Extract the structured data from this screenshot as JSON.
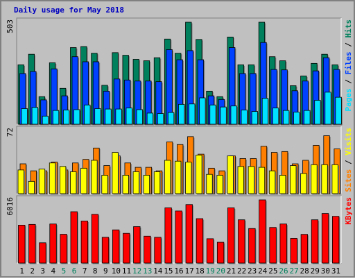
{
  "chart_data": {
    "type": "bar",
    "title": "Daily usage for May 2018",
    "categories": [
      "1",
      "2",
      "3",
      "4",
      "5",
      "6",
      "7",
      "8",
      "9",
      "10",
      "11",
      "12",
      "13",
      "14",
      "15",
      "16",
      "17",
      "18",
      "19",
      "20",
      "21",
      "22",
      "23",
      "24",
      "25",
      "26",
      "27",
      "28",
      "29",
      "30",
      "31"
    ],
    "weekend_days": [
      "5",
      "6",
      "12",
      "13",
      "19",
      "20",
      "26",
      "27"
    ],
    "panels": [
      {
        "id": "pages-files-hits",
        "scale_label": "503",
        "ylim": [
          0,
          503
        ],
        "right_label_parts": [
          {
            "text": "Pages",
            "color": "#00e0ff"
          },
          {
            "text": " / ",
            "color": "#000000"
          },
          {
            "text": "Files",
            "color": "#0040ff"
          },
          {
            "text": " / ",
            "color": "#000000"
          },
          {
            "text": "Hits",
            "color": "#00805c"
          }
        ],
        "series": [
          {
            "name": "Hits",
            "color": "#00805c",
            "values": [
              293,
              345,
              136,
              303,
              177,
              378,
              383,
              350,
              192,
              353,
              340,
              320,
              313,
              328,
              420,
              350,
              503,
              418,
              163,
              136,
              430,
              293,
              293,
              503,
              333,
              313,
              190,
              238,
              300,
              345,
              293
            ]
          },
          {
            "name": "Files",
            "color": "#0040ff",
            "values": [
              250,
              260,
              120,
              273,
              140,
              333,
              308,
              308,
              163,
              223,
              218,
              213,
              213,
              210,
              368,
              318,
              363,
              318,
              140,
              122,
              378,
              250,
              250,
              403,
              270,
              268,
              165,
              213,
              263,
              328,
              270
            ]
          },
          {
            "name": "Pages",
            "color": "#00e0ff",
            "values": [
              77,
              83,
              40,
              68,
              70,
              72,
              95,
              77,
              75,
              75,
              80,
              72,
              55,
              53,
              58,
              98,
              100,
              130,
              95,
              85,
              90,
              70,
              63,
              128,
              80,
              68,
              60,
              68,
              118,
              158,
              133
            ]
          }
        ]
      },
      {
        "id": "visits-sites",
        "scale_label": "72",
        "ylim": [
          0,
          72
        ],
        "right_label_parts": [
          {
            "text": "Sites",
            "color": "#ff8000"
          },
          {
            "text": " / ",
            "color": "#000000"
          },
          {
            "text": "Visits",
            "color": "#ffff00"
          }
        ],
        "series": [
          {
            "name": "Visits",
            "color": "#ff8000",
            "values": [
              34,
              26,
              26,
              36,
              27,
              35,
              39,
              52,
              32,
              43,
              35,
              30,
              30,
              26,
              59,
              56,
              65,
              45,
              29,
              26,
              43,
              40,
              40,
              54,
              47,
              48,
              34,
              38,
              55,
              66,
              51
            ]
          },
          {
            "name": "Sites",
            "color": "#ffff00",
            "values": [
              27,
              14,
              28,
              35,
              31,
              25,
              29,
              38,
              21,
              47,
              21,
              25,
              21,
              25,
              38,
              37,
              36,
              44,
              22,
              21,
              43,
              31,
              31,
              30,
              26,
              21,
              32,
              23,
              33,
              33,
              33
            ]
          }
        ]
      },
      {
        "id": "kbytes",
        "scale_label": "6016",
        "ylim": [
          0,
          6016
        ],
        "right_label_parts": [
          {
            "text": "KBytes",
            "color": "#ff0000"
          }
        ],
        "series": [
          {
            "name": "KBytes",
            "color": "#ff0000",
            "values": [
              3610,
              3680,
              1930,
              3720,
              2740,
              4890,
              4000,
              4640,
              2450,
              3160,
              2830,
              3470,
              2560,
              2450,
              5260,
              4960,
              5570,
              4230,
              2320,
              1980,
              5260,
              4120,
              3290,
              6016,
              3390,
              3720,
              2350,
              2730,
              4120,
              4720,
              4450
            ]
          }
        ]
      }
    ]
  }
}
